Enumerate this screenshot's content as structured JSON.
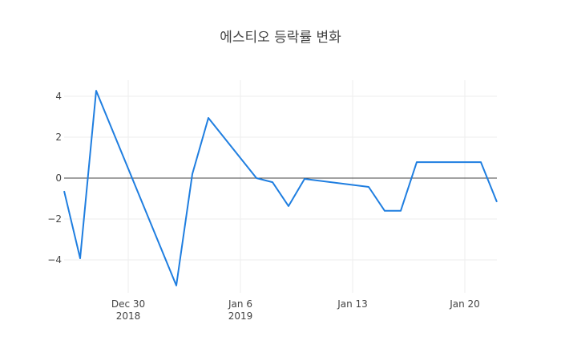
{
  "chart_data": {
    "type": "line",
    "title": "에스티오 등락률 변화",
    "xlabel": "",
    "ylabel": "",
    "x": [
      "2018-12-26",
      "2018-12-27",
      "2018-12-28",
      "2019-01-02",
      "2019-01-03",
      "2019-01-04",
      "2019-01-07",
      "2019-01-08",
      "2019-01-09",
      "2019-01-10",
      "2019-01-14",
      "2019-01-15",
      "2019-01-16",
      "2019-01-17",
      "2019-01-21",
      "2019-01-22"
    ],
    "series": [
      {
        "name": "등락률",
        "color": "#1f7ee0",
        "values": [
          -0.63,
          -3.92,
          4.27,
          -5.25,
          0.2,
          2.94,
          0.0,
          -0.2,
          -1.37,
          -0.04,
          -0.43,
          -1.6,
          -1.6,
          0.78,
          0.78,
          -1.17
        ]
      }
    ],
    "ylim": [
      -5.6,
      4.7
    ],
    "xrange": [
      "2018-12-26",
      "2019-01-22"
    ],
    "yticks": [
      4,
      2,
      0,
      -2,
      -4
    ],
    "ytick_labels": [
      "4",
      "2",
      "0",
      "−2",
      "−4"
    ],
    "xticks": [
      {
        "date": "2018-12-30",
        "line1": "Dec 30",
        "line2": "2018"
      },
      {
        "date": "2019-01-06",
        "line1": "Jan 6",
        "line2": "2019"
      },
      {
        "date": "2019-01-13",
        "line1": "Jan 13",
        "line2": ""
      },
      {
        "date": "2019-01-20",
        "line1": "Jan 20",
        "line2": ""
      }
    ],
    "grid": true,
    "zeroline": true,
    "legend": "none"
  },
  "colors": {
    "line": "#1f7ee0",
    "grid": "#eeeeee",
    "zeroline": "#444444",
    "text": "#444444"
  }
}
